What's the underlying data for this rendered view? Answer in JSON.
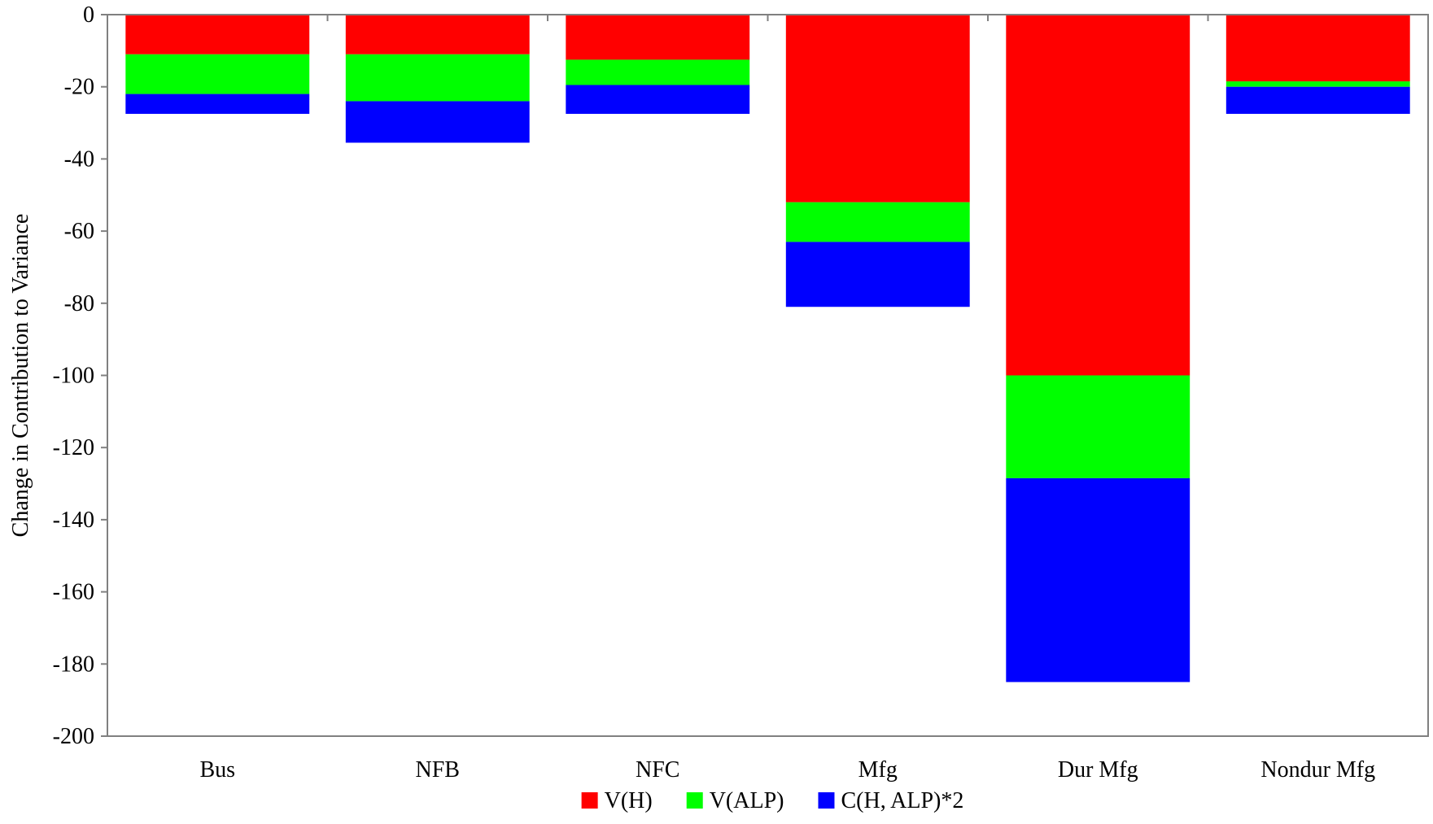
{
  "chart_data": {
    "type": "bar",
    "stacked": true,
    "title": "",
    "xlabel": "",
    "ylabel": "Change in Contribution to Variance",
    "ylim": [
      -200,
      0
    ],
    "yticks": [
      0,
      -20,
      -40,
      -60,
      -80,
      -100,
      -120,
      -140,
      -160,
      -180,
      -200
    ],
    "grid": false,
    "legend_position": "bottom",
    "categories": [
      "Bus",
      "NFB",
      "NFC",
      "Mfg",
      "Dur Mfg",
      "Nondur Mfg"
    ],
    "series": [
      {
        "name": "V(H)",
        "color": "#ff0000",
        "values": [
          -11,
          -11,
          -12.5,
          -52,
          -100,
          -18.5
        ]
      },
      {
        "name": "V(ALP)",
        "color": "#00ff00",
        "values": [
          -11,
          -13,
          -7,
          -11,
          -28.5,
          -1.5
        ]
      },
      {
        "name": "C(H, ALP)*2",
        "color": "#0000ff",
        "values": [
          -5.5,
          -11.5,
          -8,
          -18,
          -56.5,
          -7.5
        ]
      }
    ]
  }
}
